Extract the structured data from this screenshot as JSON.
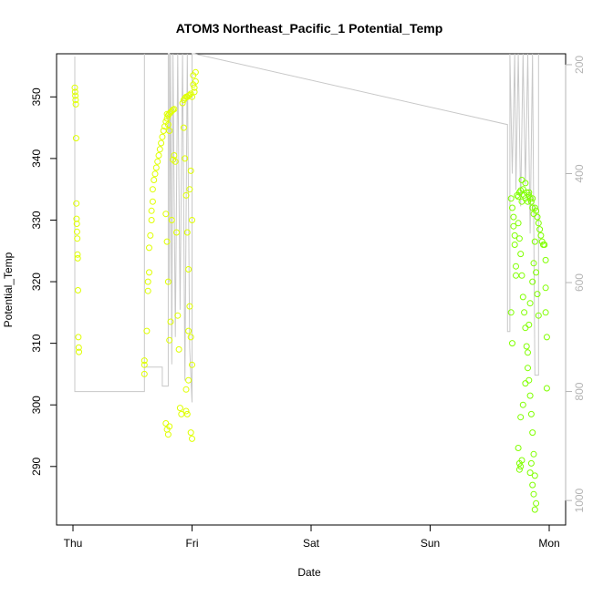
{
  "chart_data": {
    "type": "scatter",
    "title": "ATOM3 Northeast_Pacific_1 Potential_Temp",
    "xlabel": "Date",
    "ylabel": "Potential_Temp",
    "x_ticks": [
      "Thu",
      "Fri",
      "Sat",
      "Sun",
      "Mon"
    ],
    "y_ticks": [
      290,
      300,
      310,
      320,
      330,
      340,
      350
    ],
    "y2_ticks": [
      200,
      400,
      600,
      800,
      1000
    ],
    "x_range_days": [
      0,
      4.2
    ],
    "ylim": [
      280.5,
      357
    ],
    "y2lim": [
      1045,
      180
    ],
    "y2_reversed": true,
    "grid": false,
    "colors": {
      "early": "#dfff00",
      "late": "#80ff00",
      "depth_line": "#c8c8c8",
      "axis": "#000000",
      "right_axis": "#b4b4b4"
    },
    "series": [
      {
        "role": "potential_temp_points",
        "points": [
          [
            0.015,
            351.5
          ],
          [
            0.018,
            350.8
          ],
          [
            0.02,
            350.2
          ],
          [
            0.022,
            349.5
          ],
          [
            0.024,
            348.8
          ],
          [
            0.026,
            343.3
          ],
          [
            0.028,
            332.7
          ],
          [
            0.03,
            330.2
          ],
          [
            0.032,
            329.4
          ],
          [
            0.034,
            328.1
          ],
          [
            0.036,
            327.0
          ],
          [
            0.038,
            324.4
          ],
          [
            0.04,
            323.8
          ],
          [
            0.042,
            318.6
          ],
          [
            0.045,
            311.0
          ],
          [
            0.048,
            309.3
          ],
          [
            0.05,
            308.6
          ],
          [
            0.6,
            307.2
          ],
          [
            0.6,
            306.5
          ],
          [
            0.6,
            305.0
          ],
          [
            0.62,
            312.0
          ],
          [
            0.63,
            318.5
          ],
          [
            0.63,
            320.0
          ],
          [
            0.64,
            321.5
          ],
          [
            0.64,
            325.5
          ],
          [
            0.65,
            327.5
          ],
          [
            0.66,
            330.0
          ],
          [
            0.66,
            331.5
          ],
          [
            0.67,
            333.0
          ],
          [
            0.67,
            335.0
          ],
          [
            0.68,
            336.5
          ],
          [
            0.69,
            337.5
          ],
          [
            0.7,
            338.5
          ],
          [
            0.71,
            339.5
          ],
          [
            0.72,
            340.5
          ],
          [
            0.73,
            341.5
          ],
          [
            0.74,
            342.5
          ],
          [
            0.75,
            343.5
          ],
          [
            0.76,
            344.5
          ],
          [
            0.77,
            345.2
          ],
          [
            0.78,
            346.0
          ],
          [
            0.79,
            346.5
          ],
          [
            0.8,
            347.0
          ],
          [
            0.81,
            347.3
          ],
          [
            0.82,
            347.5
          ],
          [
            0.83,
            347.7
          ],
          [
            0.84,
            347.9
          ],
          [
            0.85,
            348.0
          ],
          [
            0.79,
            347.2
          ],
          [
            0.8,
            345.5
          ],
          [
            0.81,
            344.5
          ],
          [
            0.78,
            297.0
          ],
          [
            0.79,
            296.0
          ],
          [
            0.8,
            295.2
          ],
          [
            0.81,
            296.5
          ],
          [
            0.78,
            331.0
          ],
          [
            0.79,
            326.5
          ],
          [
            0.8,
            320.0
          ],
          [
            0.81,
            310.5
          ],
          [
            0.82,
            313.5
          ],
          [
            0.83,
            330.0
          ],
          [
            0.84,
            339.8
          ],
          [
            0.85,
            340.5
          ],
          [
            0.86,
            339.5
          ],
          [
            0.87,
            328.0
          ],
          [
            0.88,
            314.5
          ],
          [
            0.89,
            309.0
          ],
          [
            0.9,
            299.5
          ],
          [
            0.91,
            298.5
          ],
          [
            0.92,
            349.0
          ],
          [
            0.93,
            349.5
          ],
          [
            0.94,
            349.8
          ],
          [
            0.95,
            350.0
          ],
          [
            0.96,
            350.0
          ],
          [
            0.97,
            350.2
          ],
          [
            0.98,
            350.3
          ],
          [
            0.99,
            350.5
          ],
          [
            1.0,
            350.0
          ],
          [
            0.93,
            345.0
          ],
          [
            0.94,
            340.0
          ],
          [
            0.95,
            334.0
          ],
          [
            0.96,
            328.0
          ],
          [
            0.97,
            322.0
          ],
          [
            0.98,
            316.0
          ],
          [
            0.99,
            311.0
          ],
          [
            1.0,
            306.5
          ],
          [
            0.95,
            299.0
          ],
          [
            0.96,
            298.5
          ],
          [
            0.99,
            295.5
          ],
          [
            1.0,
            294.5
          ],
          [
            0.95,
            302.5
          ],
          [
            0.97,
            304.0
          ],
          [
            1.01,
            352.0
          ],
          [
            1.01,
            353.5
          ],
          [
            1.02,
            351.5
          ],
          [
            1.02,
            350.8
          ],
          [
            1.03,
            352.5
          ],
          [
            1.03,
            354.0
          ],
          [
            0.98,
            335.0
          ],
          [
            0.99,
            338.0
          ],
          [
            0.97,
            312.0
          ],
          [
            1.0,
            330.0
          ],
          [
            3.68,
            333.5
          ],
          [
            3.69,
            332.0
          ],
          [
            3.7,
            330.5
          ],
          [
            3.7,
            329.0
          ],
          [
            3.71,
            327.5
          ],
          [
            3.71,
            326.0
          ],
          [
            3.72,
            322.5
          ],
          [
            3.72,
            321.0
          ],
          [
            3.68,
            315.0
          ],
          [
            3.69,
            310.0
          ],
          [
            3.73,
            334.0
          ],
          [
            3.74,
            333.8
          ],
          [
            3.75,
            334.5
          ],
          [
            3.76,
            334.8
          ],
          [
            3.77,
            333.0
          ],
          [
            3.78,
            335.0
          ],
          [
            3.79,
            334.0
          ],
          [
            3.8,
            333.5
          ],
          [
            3.81,
            334.5
          ],
          [
            3.82,
            333.0
          ],
          [
            3.83,
            334.0
          ],
          [
            3.84,
            333.5
          ],
          [
            3.85,
            333.0
          ],
          [
            3.86,
            332.0
          ],
          [
            3.87,
            331.0
          ],
          [
            3.88,
            332.0
          ],
          [
            3.89,
            331.5
          ],
          [
            3.9,
            330.5
          ],
          [
            3.91,
            329.5
          ],
          [
            3.92,
            328.5
          ],
          [
            3.93,
            327.5
          ],
          [
            3.94,
            326.5
          ],
          [
            3.95,
            326.0
          ],
          [
            3.96,
            326.0
          ],
          [
            3.97,
            323.5
          ],
          [
            3.97,
            319.0
          ],
          [
            3.97,
            315.0
          ],
          [
            3.98,
            311.0
          ],
          [
            3.98,
            302.7
          ],
          [
            3.74,
            329.5
          ],
          [
            3.75,
            327.0
          ],
          [
            3.76,
            324.5
          ],
          [
            3.77,
            321.0
          ],
          [
            3.78,
            317.5
          ],
          [
            3.79,
            315.0
          ],
          [
            3.8,
            312.5
          ],
          [
            3.81,
            309.5
          ],
          [
            3.82,
            306.0
          ],
          [
            3.83,
            304.0
          ],
          [
            3.84,
            301.5
          ],
          [
            3.85,
            298.5
          ],
          [
            3.86,
            295.5
          ],
          [
            3.87,
            292.0
          ],
          [
            3.88,
            288.5
          ],
          [
            3.85,
            290.5
          ],
          [
            3.84,
            289.0
          ],
          [
            3.86,
            287.0
          ],
          [
            3.87,
            285.5
          ],
          [
            3.88,
            283.0
          ],
          [
            3.89,
            284.0
          ],
          [
            3.75,
            290.5
          ],
          [
            3.76,
            290.0
          ],
          [
            3.75,
            289.5
          ],
          [
            3.74,
            293.0
          ],
          [
            3.77,
            291.0
          ],
          [
            3.76,
            298.0
          ],
          [
            3.78,
            300.0
          ],
          [
            3.8,
            303.5
          ],
          [
            3.82,
            308.5
          ],
          [
            3.83,
            313.0
          ],
          [
            3.84,
            316.5
          ],
          [
            3.86,
            320.0
          ],
          [
            3.87,
            323.0
          ],
          [
            3.88,
            326.5
          ],
          [
            3.89,
            321.5
          ],
          [
            3.9,
            318.0
          ],
          [
            3.91,
            314.5
          ],
          [
            3.77,
            336.5
          ],
          [
            3.8,
            336.0
          ],
          [
            3.83,
            334.5
          ],
          [
            3.86,
            333.5
          ]
        ]
      }
    ],
    "depth_line": [
      [
        0.015,
        185
      ],
      [
        0.015,
        800
      ],
      [
        0.6,
        800
      ],
      [
        0.6,
        180
      ],
      [
        0.6,
        755
      ],
      [
        0.75,
        755
      ],
      [
        0.75,
        790
      ],
      [
        0.8,
        790
      ],
      [
        0.8,
        180
      ],
      [
        0.81,
        180
      ],
      [
        0.81,
        600
      ],
      [
        0.82,
        180
      ],
      [
        0.83,
        750
      ],
      [
        0.84,
        180
      ],
      [
        0.86,
        700
      ],
      [
        0.88,
        180
      ],
      [
        0.9,
        650
      ],
      [
        0.92,
        180
      ],
      [
        0.94,
        780
      ],
      [
        0.96,
        180
      ],
      [
        0.98,
        720
      ],
      [
        1.0,
        820
      ],
      [
        1.0,
        180
      ],
      [
        1.01,
        180
      ],
      [
        1.02,
        180
      ],
      [
        3.65,
        310
      ],
      [
        3.65,
        690
      ],
      [
        3.67,
        690
      ],
      [
        3.67,
        180
      ],
      [
        3.69,
        400
      ],
      [
        3.71,
        180
      ],
      [
        3.72,
        430
      ],
      [
        3.74,
        180
      ],
      [
        3.76,
        460
      ],
      [
        3.78,
        180
      ],
      [
        3.8,
        420
      ],
      [
        3.82,
        180
      ],
      [
        3.84,
        510
      ],
      [
        3.86,
        180
      ],
      [
        3.88,
        770
      ],
      [
        3.91,
        770
      ],
      [
        3.91,
        180
      ]
    ]
  }
}
